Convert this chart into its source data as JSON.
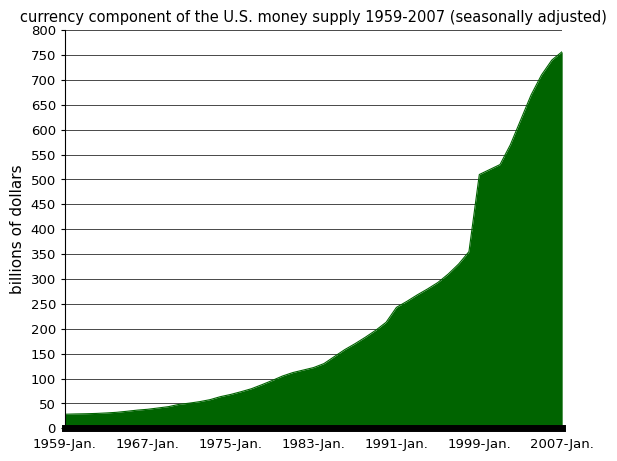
{
  "title": "currency component of the U.S. money supply 1959-2007 (seasonally adjusted)",
  "ylabel": "billions of dollars",
  "fill_color": "#006400",
  "line_color": "#006400",
  "background_color": "#ffffff",
  "border_color": "#000000",
  "ylim": [
    0,
    800
  ],
  "yticks": [
    0,
    50,
    100,
    150,
    200,
    250,
    300,
    350,
    400,
    450,
    500,
    550,
    600,
    650,
    700,
    750,
    800
  ],
  "xtick_labels": [
    "1959-Jan.",
    "1967-Jan.",
    "1975-Jan.",
    "1983-Jan.",
    "1991-Jan.",
    "1999-Jan.",
    "2007-Jan."
  ],
  "xtick_years": [
    1959,
    1967,
    1975,
    1983,
    1991,
    1999,
    2007
  ],
  "data_years": [
    1959,
    1960,
    1961,
    1962,
    1963,
    1964,
    1965,
    1966,
    1967,
    1968,
    1969,
    1970,
    1971,
    1972,
    1973,
    1974,
    1975,
    1976,
    1977,
    1978,
    1979,
    1980,
    1981,
    1982,
    1983,
    1984,
    1985,
    1986,
    1987,
    1988,
    1989,
    1990,
    1991,
    1992,
    1993,
    1994,
    1995,
    1996,
    1997,
    1998,
    1999,
    2000,
    2001,
    2002,
    2003,
    2004,
    2005,
    2006,
    2007
  ],
  "data_values": [
    28.2,
    28.8,
    29.2,
    29.8,
    30.8,
    32.1,
    34.2,
    36.5,
    38.2,
    40.8,
    43.5,
    48.0,
    50.5,
    53.5,
    57.5,
    63.5,
    68.0,
    73.5,
    79.5,
    87.5,
    96.0,
    105.0,
    112.0,
    117.0,
    122.0,
    130.0,
    144.0,
    158.0,
    170.0,
    183.0,
    197.0,
    213.0,
    243.0,
    255.0,
    268.0,
    280.0,
    293.0,
    310.0,
    330.0,
    355.0,
    510.0,
    520.0,
    530.0,
    570.0,
    620.0,
    670.0,
    710.0,
    740.0,
    757.0
  ],
  "title_fontsize": 10.5,
  "axis_label_fontsize": 11,
  "tick_fontsize": 9.5
}
